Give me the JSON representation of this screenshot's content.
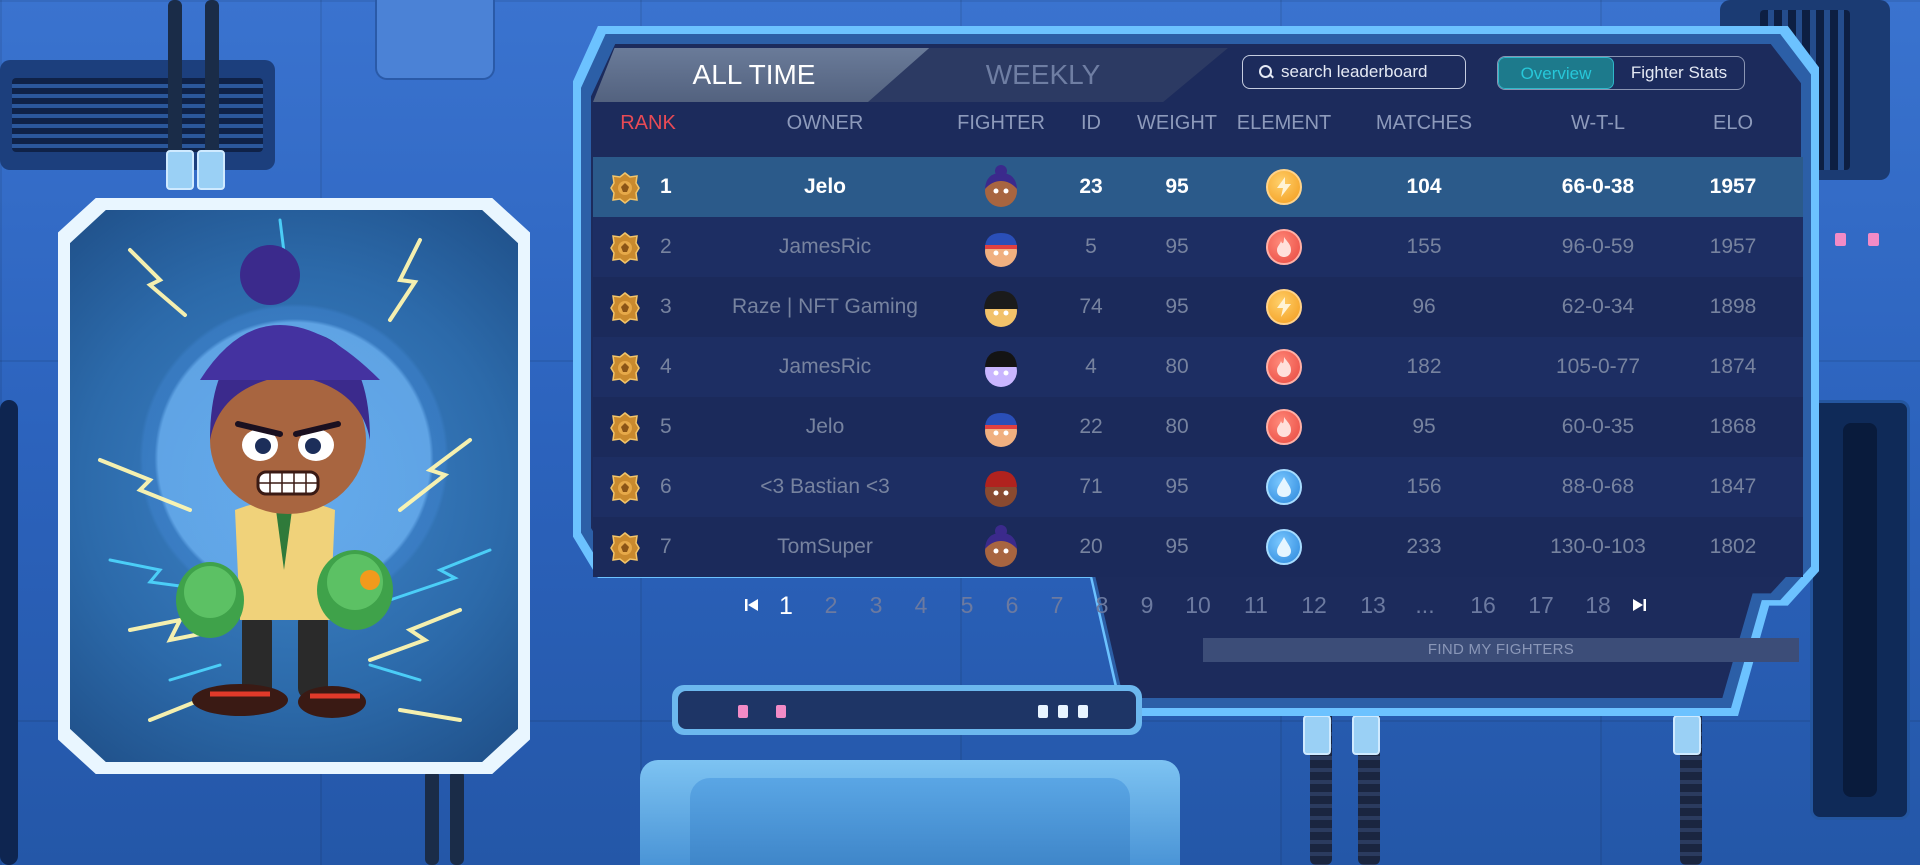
{
  "tabs": {
    "all_time": "ALL TIME",
    "weekly": "WEEKLY",
    "active": "all_time"
  },
  "search": {
    "placeholder": "search leaderboard",
    "value": ""
  },
  "view_toggle": {
    "overview": "Overview",
    "fighter_stats": "Fighter Stats",
    "active": "overview"
  },
  "columns": {
    "rank": "RANK",
    "owner": "OWNER",
    "fighter": "FIGHTER",
    "id": "ID",
    "weight": "WEIGHT",
    "element": "ELEMENT",
    "matches": "MATCHES",
    "wtl": "W-T-L",
    "elo": "ELO"
  },
  "rows": [
    {
      "rank": "1",
      "owner": "Jelo",
      "id": "23",
      "weight": "95",
      "element": "lightning-icon",
      "matches": "104",
      "wtl": "66-0-38",
      "elo": "1957",
      "selected": true,
      "avatar": "fighter-bun"
    },
    {
      "rank": "2",
      "owner": "JamesRic",
      "id": "5",
      "weight": "95",
      "element": "fire-icon",
      "matches": "155",
      "wtl": "96-0-59",
      "elo": "1957",
      "selected": false,
      "avatar": "fighter-cap"
    },
    {
      "rank": "3",
      "owner": "Raze | NFT Gaming",
      "id": "74",
      "weight": "95",
      "element": "lightning-icon",
      "matches": "96",
      "wtl": "62-0-34",
      "elo": "1898",
      "selected": false,
      "avatar": "fighter-helmet"
    },
    {
      "rank": "4",
      "owner": "JamesRic",
      "id": "4",
      "weight": "80",
      "element": "fire-icon",
      "matches": "182",
      "wtl": "105-0-77",
      "elo": "1874",
      "selected": false,
      "avatar": "fighter-purple"
    },
    {
      "rank": "5",
      "owner": "Jelo",
      "id": "22",
      "weight": "80",
      "element": "fire-icon",
      "matches": "95",
      "wtl": "60-0-35",
      "elo": "1868",
      "selected": false,
      "avatar": "fighter-cap"
    },
    {
      "rank": "6",
      "owner": "<3 Bastian <3",
      "id": "71",
      "weight": "95",
      "element": "water-icon",
      "matches": "156",
      "wtl": "88-0-68",
      "elo": "1847",
      "selected": false,
      "avatar": "fighter-red"
    },
    {
      "rank": "7",
      "owner": "TomSuper",
      "id": "20",
      "weight": "95",
      "element": "water-icon",
      "matches": "233",
      "wtl": "130-0-103",
      "elo": "1802",
      "selected": false,
      "avatar": "fighter-bun"
    }
  ],
  "pagination": {
    "pages": [
      "1",
      "2",
      "3",
      "4",
      "5",
      "6",
      "7",
      "8",
      "9",
      "10",
      "11",
      "12",
      "13",
      "...",
      "16",
      "17",
      "18"
    ],
    "current": "1"
  },
  "find_my_fighters": "FIND MY FIGHTERS",
  "colors": {
    "rank_header": "#e84a55",
    "toggle_active": "#27c7d9",
    "panel_bg": "#1c2b5c",
    "frame": "#6cc2ff"
  }
}
